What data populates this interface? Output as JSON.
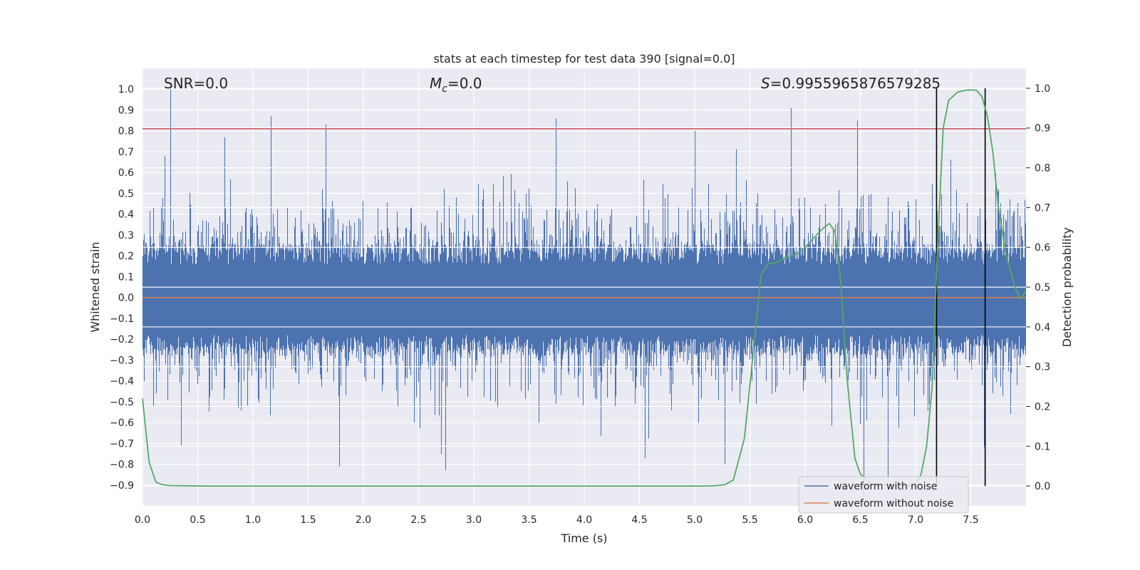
{
  "chart_data": {
    "type": "line",
    "title": "stats at each timestep for test data 390 [signal=0.0]",
    "xlabel": "Time (s)",
    "ylabel_left": "Whitened strain",
    "ylabel_right": "Detection probability",
    "xlim": [
      0.0,
      8.0
    ],
    "ylim_left": [
      -1.0,
      1.1
    ],
    "ylim_right": [
      -0.05,
      1.05
    ],
    "x_ticks": [
      "0.0",
      "0.5",
      "1.0",
      "1.5",
      "2.0",
      "2.5",
      "3.0",
      "3.5",
      "4.0",
      "4.5",
      "5.0",
      "5.5",
      "6.0",
      "6.5",
      "7.0",
      "7.5"
    ],
    "x_tick_values": [
      0.0,
      0.5,
      1.0,
      1.5,
      2.0,
      2.5,
      3.0,
      3.5,
      4.0,
      4.5,
      5.0,
      5.5,
      6.0,
      6.5,
      7.0,
      7.5
    ],
    "y_left_ticks": [
      "1.0",
      "0.9",
      "0.8",
      "0.7",
      "0.6",
      "0.5",
      "0.4",
      "0.3",
      "0.2",
      "0.1",
      "0.0",
      "−0.1",
      "−0.2",
      "−0.3",
      "−0.4",
      "−0.5",
      "−0.6",
      "−0.7",
      "−0.8",
      "−0.9"
    ],
    "y_left_tick_values": [
      1.0,
      0.9,
      0.8,
      0.7,
      0.6,
      0.5,
      0.4,
      0.3,
      0.2,
      0.1,
      0.0,
      -0.1,
      -0.2,
      -0.3,
      -0.4,
      -0.5,
      -0.6,
      -0.7,
      -0.8,
      -0.9
    ],
    "y_right_ticks": [
      "1.0",
      "0.9",
      "0.8",
      "0.7",
      "0.6",
      "0.5",
      "0.4",
      "0.3",
      "0.2",
      "0.1",
      "0.0"
    ],
    "y_right_tick_values": [
      1.0,
      0.9,
      0.8,
      0.7,
      0.6,
      0.5,
      0.4,
      0.3,
      0.2,
      0.1,
      0.0
    ],
    "annotations": {
      "snr": "SNR=0.0",
      "mc_symbol": "M",
      "mc_sub": "c",
      "mc_value": "=0.0",
      "s_symbol": "S",
      "s_value": "=0.9955965876579285"
    },
    "threshold_line": {
      "y": 0.81,
      "color": "#c44e52"
    },
    "vertical_lines": [
      7.19,
      7.63
    ],
    "series": [
      {
        "name": "waveform with noise",
        "color": "#4c72b0",
        "axis": "left",
        "kind": "noise",
        "duration": 8.0,
        "sample_rate": 2048,
        "spikes": [
          {
            "x": 0.25,
            "y": 1.0
          },
          {
            "x": 1.16,
            "y": 0.87
          },
          {
            "x": 1.66,
            "y": 0.83
          },
          {
            "x": 3.74,
            "y": 0.86
          },
          {
            "x": 5.87,
            "y": 0.91
          },
          {
            "x": 6.47,
            "y": 0.85
          },
          {
            "x": 5.0,
            "y": 0.8
          },
          {
            "x": 0.74,
            "y": 0.77
          },
          {
            "x": 1.78,
            "y": -0.81
          },
          {
            "x": 2.74,
            "y": -0.83
          },
          {
            "x": 6.53,
            "y": -0.95
          },
          {
            "x": 6.75,
            "y": -0.88
          },
          {
            "x": 7.62,
            "y": -0.72
          },
          {
            "x": 0.35,
            "y": -0.71
          },
          {
            "x": 4.55,
            "y": -0.77
          },
          {
            "x": 5.27,
            "y": -0.8
          },
          {
            "x": 7.19,
            "y": -0.8
          }
        ]
      },
      {
        "name": "waveform without noise",
        "color": "#dd8452",
        "axis": "left",
        "kind": "constant",
        "value": 0.0
      },
      {
        "name": "detection probability",
        "color": "#55a868",
        "axis": "right",
        "kind": "line",
        "x": [
          0.0,
          0.06,
          0.12,
          0.18,
          0.25,
          0.4,
          0.6,
          1.0,
          2.0,
          3.0,
          4.0,
          5.0,
          5.1,
          5.2,
          5.27,
          5.35,
          5.45,
          5.55,
          5.6,
          5.67,
          5.72,
          5.8,
          5.9,
          6.0,
          6.1,
          6.17,
          6.22,
          6.27,
          6.32,
          6.38,
          6.45,
          6.5,
          6.6,
          7.0,
          7.05,
          7.1,
          7.15,
          7.2,
          7.25,
          7.3,
          7.38,
          7.45,
          7.5,
          7.55,
          7.6,
          7.65,
          7.7,
          7.75,
          7.82,
          7.9,
          7.95,
          8.0
        ],
        "y": [
          0.22,
          0.06,
          0.01,
          0.003,
          0.001,
          0.0005,
          0.0,
          0.0,
          0.0,
          0.0,
          0.0,
          0.0,
          0.0,
          0.001,
          0.003,
          0.015,
          0.12,
          0.39,
          0.53,
          0.56,
          0.56,
          0.57,
          0.58,
          0.6,
          0.63,
          0.65,
          0.66,
          0.64,
          0.52,
          0.27,
          0.07,
          0.03,
          0.005,
          0.0,
          0.03,
          0.1,
          0.25,
          0.61,
          0.9,
          0.97,
          0.99,
          0.995,
          0.996,
          0.995,
          0.98,
          0.93,
          0.84,
          0.7,
          0.58,
          0.5,
          0.47,
          0.49
        ]
      }
    ],
    "legend": {
      "placement": "lower-right",
      "entries": [
        "waveform with noise",
        "waveform without noise"
      ]
    }
  }
}
